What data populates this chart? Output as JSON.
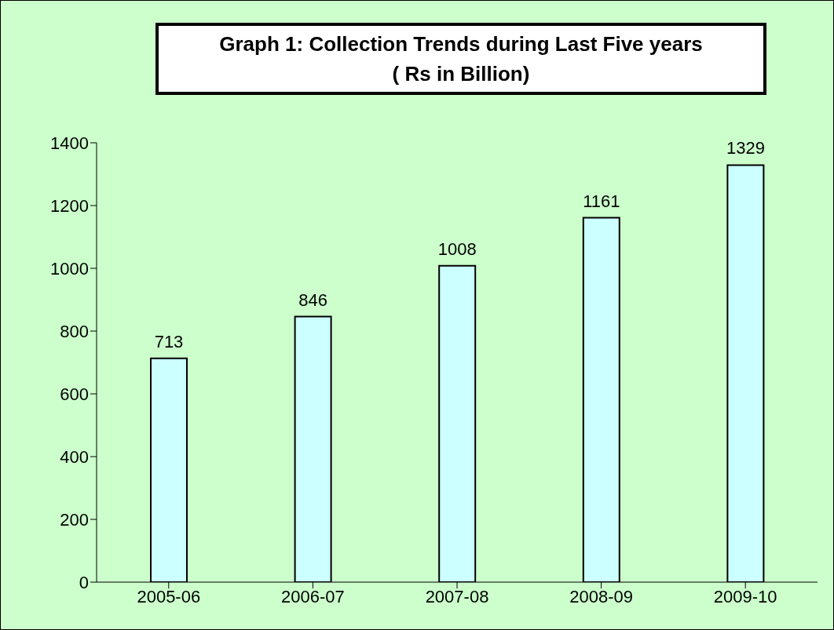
{
  "chart_data": {
    "type": "bar",
    "title": "Graph 1: Collection Trends during Last Five years",
    "subtitle": "( Rs in Billion)",
    "categories": [
      "2005-06",
      "2006-07",
      "2007-08",
      "2008-09",
      "2009-10"
    ],
    "values": [
      713,
      846,
      1008,
      1161,
      1329
    ],
    "color": "#ccffff",
    "ylim": [
      0,
      1400
    ],
    "yticks": [
      0,
      200,
      400,
      600,
      800,
      1000,
      1200,
      1400
    ],
    "grid": false,
    "legend": false,
    "data_labels": true
  }
}
